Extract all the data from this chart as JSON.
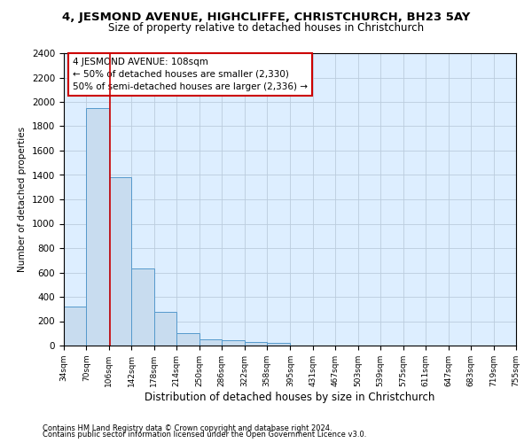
{
  "title1": "4, JESMOND AVENUE, HIGHCLIFFE, CHRISTCHURCH, BH23 5AY",
  "title2": "Size of property relative to detached houses in Christchurch",
  "xlabel": "Distribution of detached houses by size in Christchurch",
  "ylabel": "Number of detached properties",
  "footnote1": "Contains HM Land Registry data © Crown copyright and database right 2024.",
  "footnote2": "Contains public sector information licensed under the Open Government Licence v3.0.",
  "bar_edges": [
    34,
    70,
    106,
    142,
    178,
    214,
    250,
    286,
    322,
    358,
    395,
    431,
    467,
    503,
    539,
    575,
    611,
    647,
    683,
    719,
    755
  ],
  "bar_heights": [
    320,
    1950,
    1380,
    630,
    280,
    100,
    50,
    45,
    30,
    20,
    0,
    0,
    0,
    0,
    0,
    0,
    0,
    0,
    0,
    0
  ],
  "bar_color": "#c8dcef",
  "bar_edge_color": "#5599cc",
  "grid_color": "#bbccdd",
  "bg_color": "#ddeeff",
  "vline_x": 108,
  "vline_color": "#cc0000",
  "annotation_text": "4 JESMOND AVENUE: 108sqm\n← 50% of detached houses are smaller (2,330)\n50% of semi-detached houses are larger (2,336) →",
  "annotation_box_facecolor": "#ffffff",
  "annotation_box_edgecolor": "#cc0000",
  "ylim": [
    0,
    2400
  ],
  "yticks": [
    0,
    200,
    400,
    600,
    800,
    1000,
    1200,
    1400,
    1600,
    1800,
    2000,
    2200,
    2400
  ],
  "tick_labels": [
    "34sqm",
    "70sqm",
    "106sqm",
    "142sqm",
    "178sqm",
    "214sqm",
    "250sqm",
    "286sqm",
    "322sqm",
    "358sqm",
    "395sqm",
    "431sqm",
    "467sqm",
    "503sqm",
    "539sqm",
    "575sqm",
    "611sqm",
    "647sqm",
    "683sqm",
    "719sqm",
    "755sqm"
  ],
  "title1_fontsize": 9.5,
  "title2_fontsize": 8.5,
  "xlabel_fontsize": 8.5,
  "ylabel_fontsize": 7.5,
  "ytick_fontsize": 7.5,
  "xtick_fontsize": 6.5,
  "annot_fontsize": 7.5,
  "footnote_fontsize": 6.0
}
